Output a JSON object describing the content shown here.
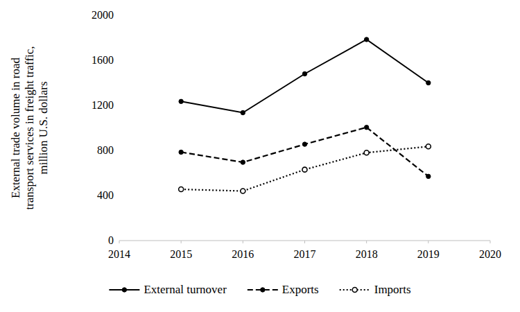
{
  "chart_data": {
    "type": "line",
    "ylabel": [
      "External trade volume in road",
      "transport services in freight traffic,",
      "million U.S. dollars"
    ],
    "x": [
      2015,
      2016,
      2017,
      2018,
      2019
    ],
    "xlim": [
      2014,
      2020
    ],
    "xticks": [
      2014,
      2015,
      2016,
      2017,
      2018,
      2019,
      2020
    ],
    "ylim": [
      0,
      2000
    ],
    "yticks": [
      0,
      400,
      800,
      1200,
      1600,
      2000
    ],
    "grid": false,
    "legend": "bottom",
    "series": [
      {
        "name": "External turnover",
        "color": "#000000",
        "line_style": "solid",
        "marker": "filled",
        "values": [
          1235,
          1135,
          1480,
          1785,
          1400
        ]
      },
      {
        "name": "Exports",
        "color": "#000000",
        "line_style": "dashed",
        "marker": "filled",
        "values": [
          785,
          695,
          855,
          1005,
          570
        ]
      },
      {
        "name": "Imports",
        "color": "#000000",
        "line_style": "dotted",
        "marker": "hollow",
        "values": [
          455,
          440,
          630,
          780,
          835
        ]
      }
    ]
  }
}
